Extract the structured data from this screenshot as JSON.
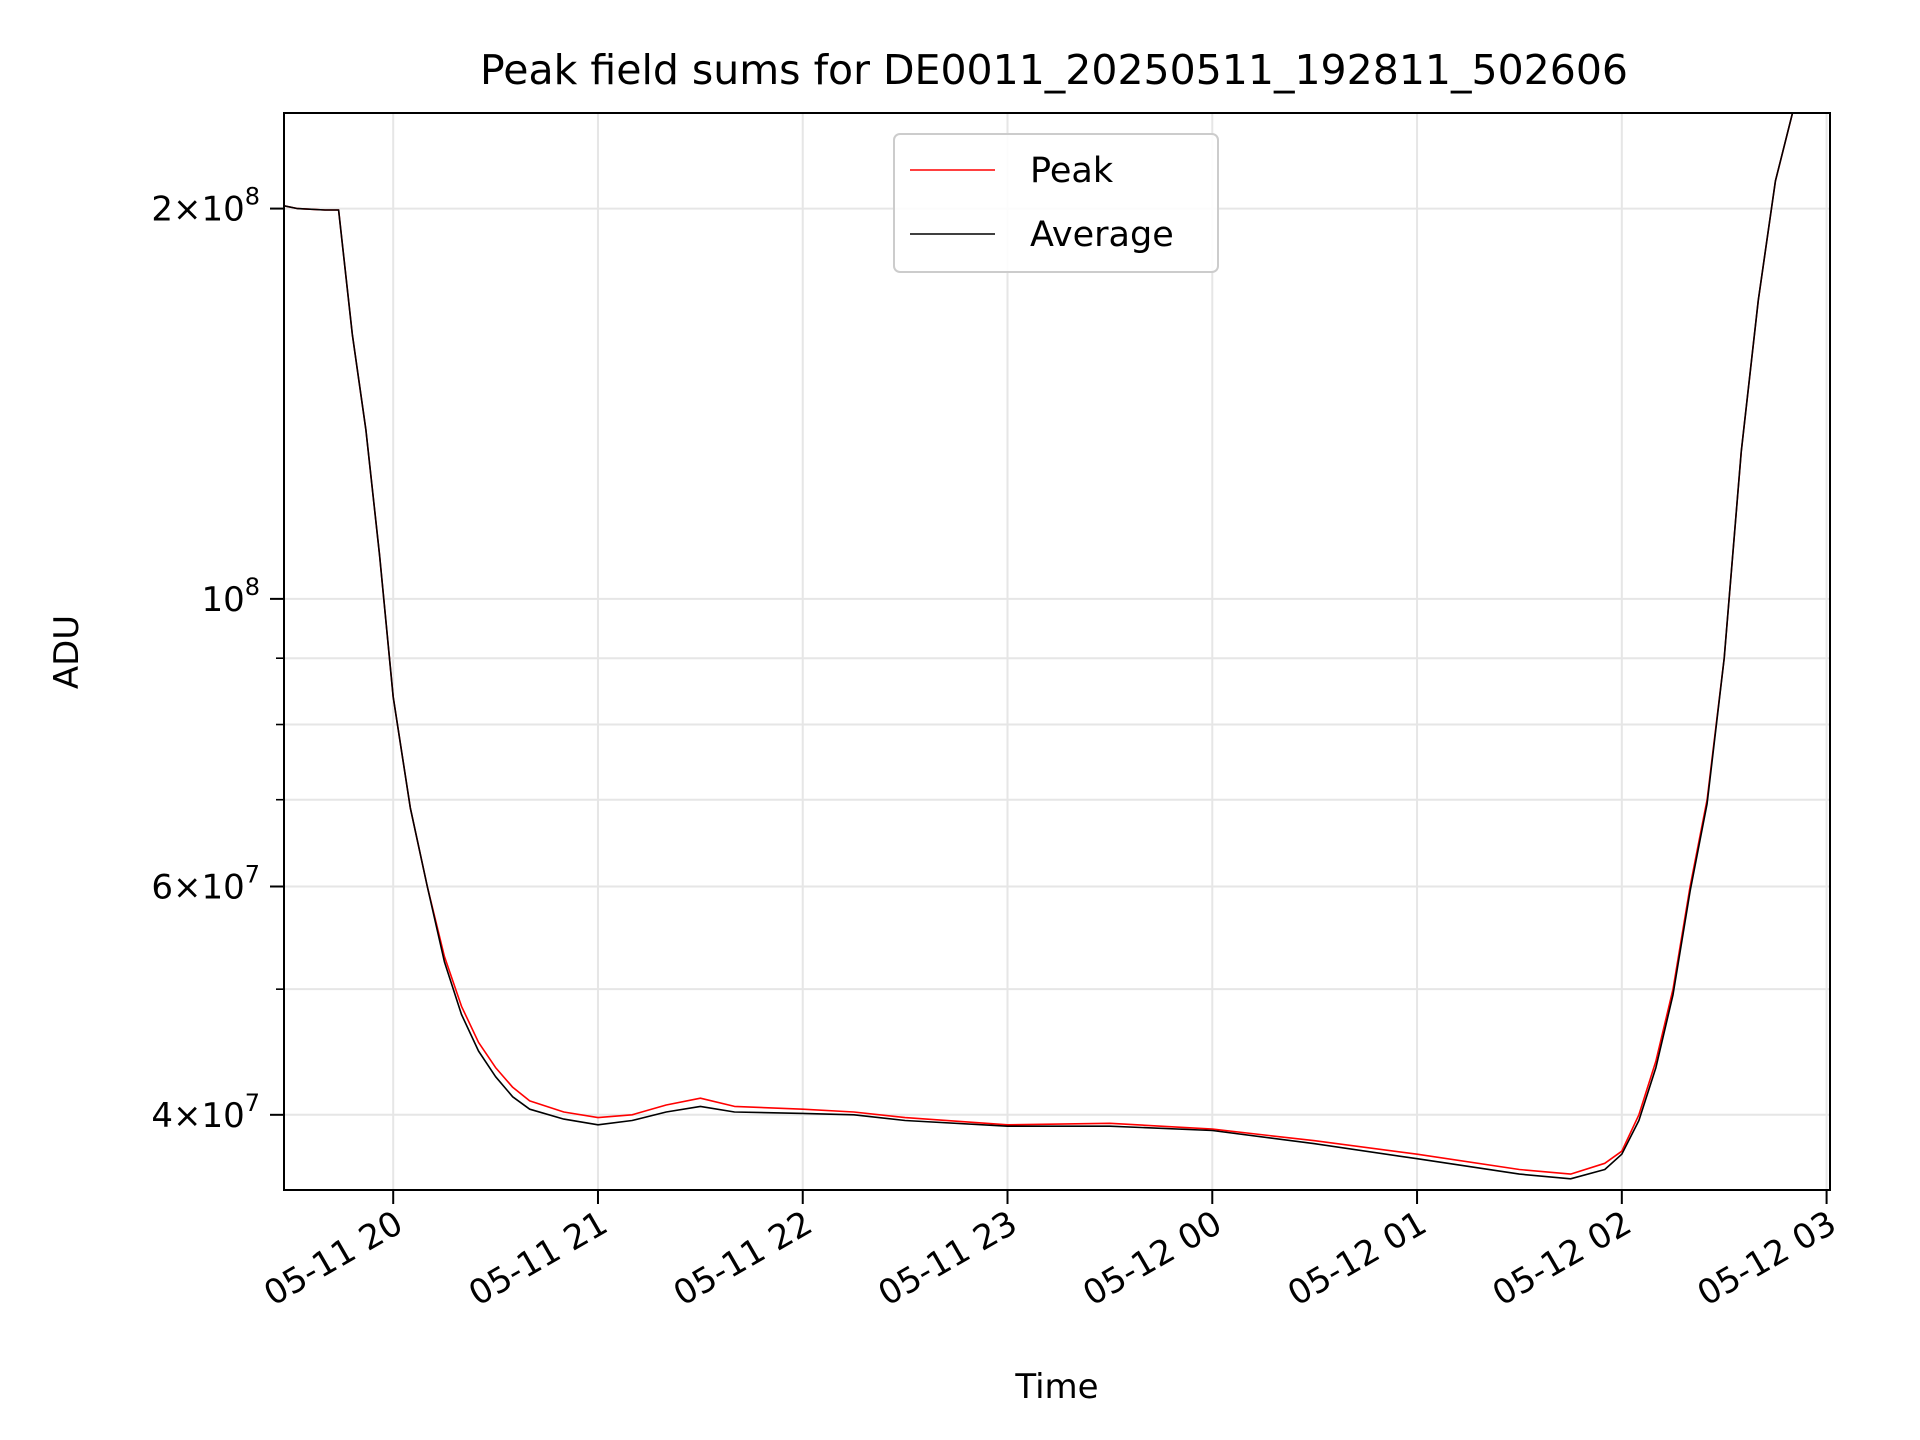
{
  "chart_data": {
    "type": "line",
    "title": "Peak field sums for DE0011_20250511_192811_502606",
    "xlabel": "Time",
    "ylabel": "ADU",
    "y_scale": "log",
    "ylim": [
      35000000,
      237000000
    ],
    "xlim": [
      "2025-05-11 19:28",
      "2025-05-12 03:01"
    ],
    "grid": true,
    "legend_position": "top-center",
    "x_ticks": [
      {
        "t": "2025-05-11 20:00",
        "label": "05-11 20"
      },
      {
        "t": "2025-05-11 21:00",
        "label": "05-11 21"
      },
      {
        "t": "2025-05-11 22:00",
        "label": "05-11 22"
      },
      {
        "t": "2025-05-11 23:00",
        "label": "05-11 23"
      },
      {
        "t": "2025-05-12 00:00",
        "label": "05-12 00"
      },
      {
        "t": "2025-05-12 01:00",
        "label": "05-12 01"
      },
      {
        "t": "2025-05-12 02:00",
        "label": "05-12 02"
      },
      {
        "t": "2025-05-12 03:00",
        "label": "05-12 03"
      }
    ],
    "y_ticks": [
      {
        "value": 200000000,
        "mant": "2",
        "exp": "8"
      },
      {
        "value": 100000000,
        "mant": "",
        "exp": "8"
      },
      {
        "value": 60000000,
        "mant": "6",
        "exp": "7"
      },
      {
        "value": 40000000,
        "mant": "4",
        "exp": "7"
      }
    ],
    "y_minor_ticks": [
      90000000,
      80000000,
      70000000,
      50000000
    ],
    "series": [
      {
        "name": "Peak",
        "color": "#ff0000",
        "points": [
          [
            "2025-05-11 19:28",
            201000000
          ],
          [
            "2025-05-11 19:32",
            200000000
          ],
          [
            "2025-05-11 19:40",
            199500000
          ],
          [
            "2025-05-11 19:44",
            199500000
          ],
          [
            "2025-05-11 19:48",
            160000000
          ],
          [
            "2025-05-11 19:52",
            135000000
          ],
          [
            "2025-05-11 19:56",
            108000000
          ],
          [
            "2025-05-11 20:00",
            84000000
          ],
          [
            "2025-05-11 20:05",
            69000000
          ],
          [
            "2025-05-11 20:10",
            60000000
          ],
          [
            "2025-05-11 20:15",
            53000000
          ],
          [
            "2025-05-11 20:20",
            48500000
          ],
          [
            "2025-05-11 20:25",
            45500000
          ],
          [
            "2025-05-11 20:30",
            43500000
          ],
          [
            "2025-05-11 20:35",
            42000000
          ],
          [
            "2025-05-11 20:40",
            41000000
          ],
          [
            "2025-05-11 20:50",
            40200000
          ],
          [
            "2025-05-11 21:00",
            39800000
          ],
          [
            "2025-05-11 21:10",
            40000000
          ],
          [
            "2025-05-11 21:20",
            40700000
          ],
          [
            "2025-05-11 21:30",
            41200000
          ],
          [
            "2025-05-11 21:40",
            40600000
          ],
          [
            "2025-05-11 22:00",
            40400000
          ],
          [
            "2025-05-11 22:15",
            40200000
          ],
          [
            "2025-05-11 22:30",
            39800000
          ],
          [
            "2025-05-11 23:00",
            39300000
          ],
          [
            "2025-05-11 23:30",
            39400000
          ],
          [
            "2025-05-12 00:00",
            39000000
          ],
          [
            "2025-05-12 00:30",
            38200000
          ],
          [
            "2025-05-12 01:00",
            37300000
          ],
          [
            "2025-05-12 01:30",
            36300000
          ],
          [
            "2025-05-12 01:45",
            36000000
          ],
          [
            "2025-05-12 01:55",
            36700000
          ],
          [
            "2025-05-12 02:00",
            37500000
          ],
          [
            "2025-05-12 02:05",
            40000000
          ],
          [
            "2025-05-12 02:10",
            44000000
          ],
          [
            "2025-05-12 02:15",
            50000000
          ],
          [
            "2025-05-12 02:20",
            60000000
          ],
          [
            "2025-05-12 02:25",
            70000000
          ],
          [
            "2025-05-12 02:30",
            90000000
          ],
          [
            "2025-05-12 02:35",
            130000000
          ],
          [
            "2025-05-12 02:40",
            170000000
          ],
          [
            "2025-05-12 02:45",
            210000000
          ],
          [
            "2025-05-12 02:50",
            237000000
          ]
        ]
      },
      {
        "name": "Average",
        "color": "#000000",
        "points": [
          [
            "2025-05-11 19:28",
            201000000
          ],
          [
            "2025-05-11 19:32",
            200000000
          ],
          [
            "2025-05-11 19:40",
            199500000
          ],
          [
            "2025-05-11 19:44",
            199500000
          ],
          [
            "2025-05-11 19:48",
            160000000
          ],
          [
            "2025-05-11 19:52",
            135000000
          ],
          [
            "2025-05-11 19:56",
            108000000
          ],
          [
            "2025-05-11 20:00",
            84000000
          ],
          [
            "2025-05-11 20:05",
            69000000
          ],
          [
            "2025-05-11 20:10",
            60000000
          ],
          [
            "2025-05-11 20:15",
            52500000
          ],
          [
            "2025-05-11 20:20",
            47800000
          ],
          [
            "2025-05-11 20:25",
            44800000
          ],
          [
            "2025-05-11 20:30",
            42800000
          ],
          [
            "2025-05-11 20:35",
            41300000
          ],
          [
            "2025-05-11 20:40",
            40400000
          ],
          [
            "2025-05-11 20:50",
            39700000
          ],
          [
            "2025-05-11 21:00",
            39300000
          ],
          [
            "2025-05-11 21:10",
            39600000
          ],
          [
            "2025-05-11 21:20",
            40200000
          ],
          [
            "2025-05-11 21:30",
            40600000
          ],
          [
            "2025-05-11 21:40",
            40200000
          ],
          [
            "2025-05-11 22:00",
            40100000
          ],
          [
            "2025-05-11 22:15",
            40000000
          ],
          [
            "2025-05-11 22:30",
            39600000
          ],
          [
            "2025-05-11 23:00",
            39200000
          ],
          [
            "2025-05-11 23:30",
            39200000
          ],
          [
            "2025-05-12 00:00",
            38900000
          ],
          [
            "2025-05-12 00:30",
            38000000
          ],
          [
            "2025-05-12 01:00",
            37000000
          ],
          [
            "2025-05-12 01:30",
            36000000
          ],
          [
            "2025-05-12 01:45",
            35700000
          ],
          [
            "2025-05-12 01:55",
            36300000
          ],
          [
            "2025-05-12 02:00",
            37300000
          ],
          [
            "2025-05-12 02:05",
            39600000
          ],
          [
            "2025-05-12 02:10",
            43500000
          ],
          [
            "2025-05-12 02:15",
            49500000
          ],
          [
            "2025-05-12 02:20",
            59500000
          ],
          [
            "2025-05-12 02:25",
            69500000
          ],
          [
            "2025-05-12 02:30",
            90000000
          ],
          [
            "2025-05-12 02:35",
            130000000
          ],
          [
            "2025-05-12 02:40",
            170000000
          ],
          [
            "2025-05-12 02:45",
            210000000
          ],
          [
            "2025-05-12 02:50",
            237000000
          ]
        ]
      }
    ]
  }
}
